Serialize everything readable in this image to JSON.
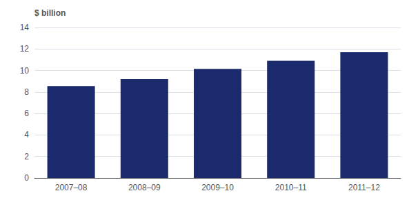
{
  "chart_data": {
    "type": "bar",
    "ylabel": "$ billion",
    "categories": [
      "2007–08",
      "2008–09",
      "2009–10",
      "2010–11",
      "2011–12"
    ],
    "values": [
      8.55,
      9.2,
      10.15,
      10.9,
      11.7
    ],
    "color": "#1a2a6c",
    "ylim": [
      0,
      14
    ],
    "yticks": [
      0,
      2,
      4,
      6,
      8,
      10,
      12,
      14
    ],
    "grid": true
  }
}
